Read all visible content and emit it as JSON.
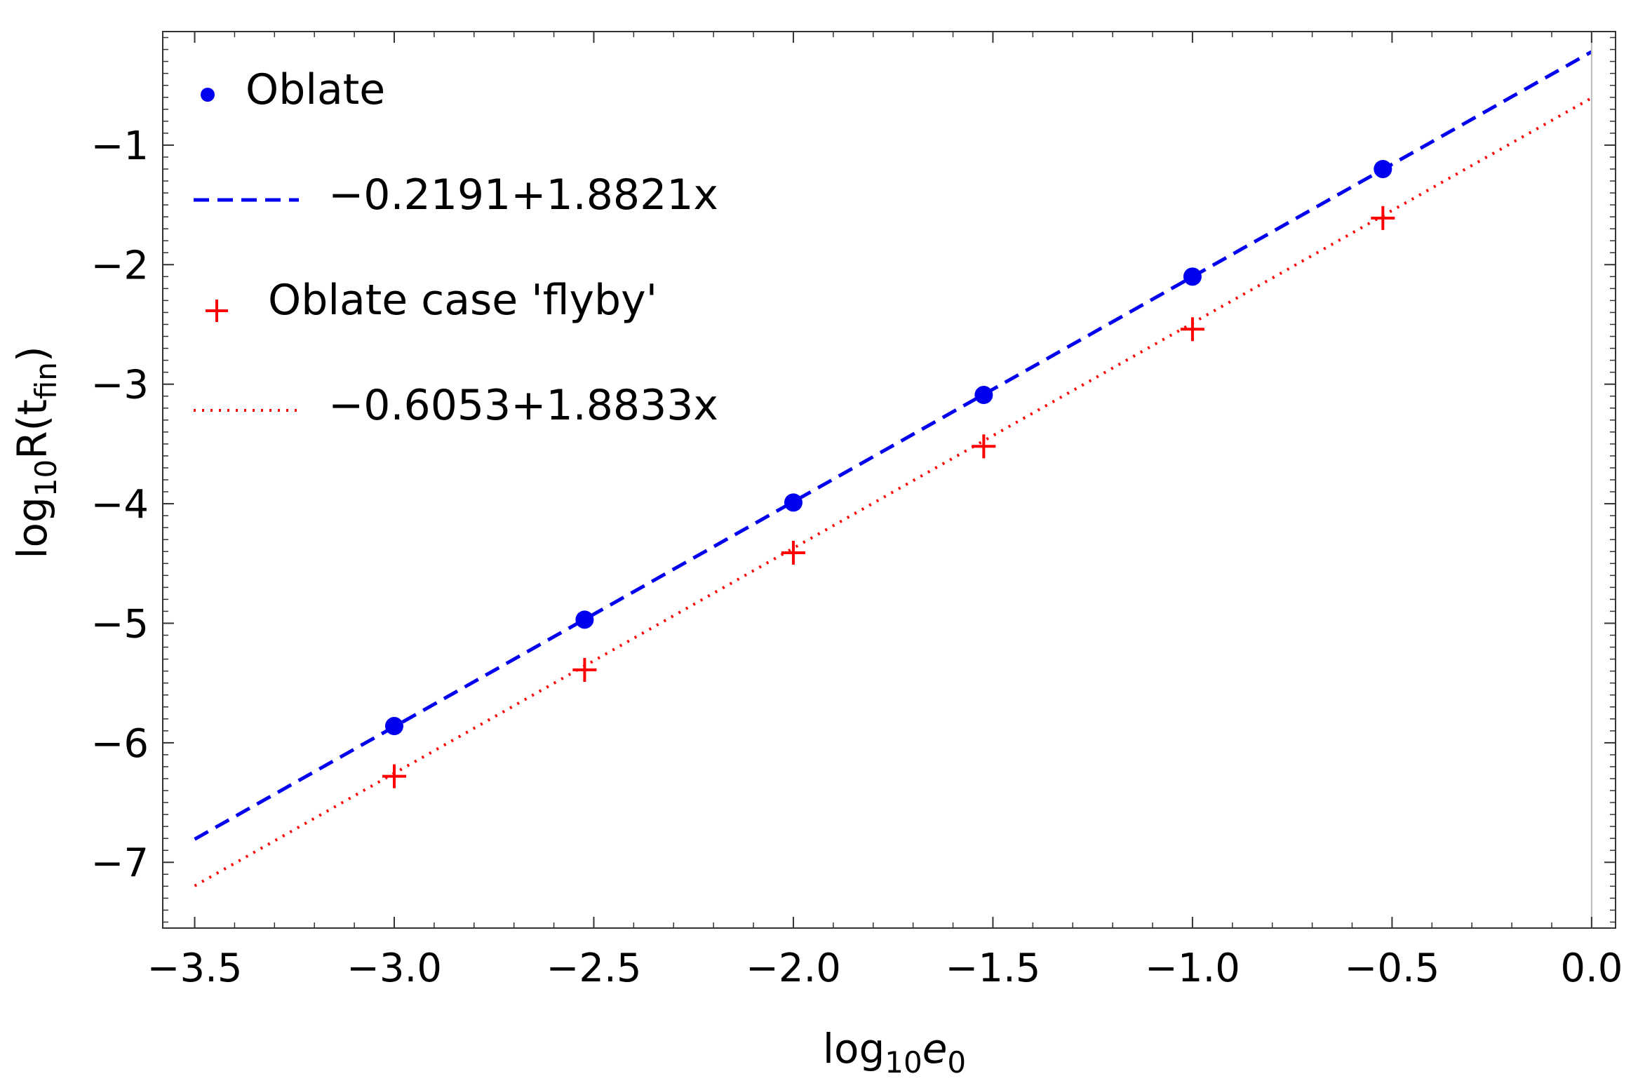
{
  "chart_data": {
    "type": "scatter",
    "title": "",
    "xlabel": {
      "base": "log",
      "sub": "10",
      "var": "e",
      "var_sub": "0"
    },
    "ylabel": {
      "base": "log",
      "sub": "10",
      "main": "R(t",
      "inner_sub": "fin",
      "close": ")"
    },
    "xlim": [
      -3.58,
      0.06
    ],
    "ylim": [
      -7.55,
      -0.05
    ],
    "xticks": [
      -3.5,
      -3.0,
      -2.5,
      -2.0,
      -1.5,
      -1.0,
      -0.5,
      0.0
    ],
    "xtick_labels": [
      "−3.5",
      "−3.0",
      "−2.5",
      "−2.0",
      "−1.5",
      "−1.0",
      "−0.5",
      "0.0"
    ],
    "yticks": [
      -7,
      -6,
      -5,
      -4,
      -3,
      -2,
      -1
    ],
    "ytick_labels": [
      "−7",
      "−6",
      "−5",
      "−4",
      "−3",
      "−2",
      "−1"
    ],
    "grid": false,
    "legend_position": "top-left",
    "series": [
      {
        "name": "Oblate",
        "kind": "points",
        "marker": "dot",
        "color": "#0000ee",
        "x": [
          -3.0,
          -2.523,
          -2.0,
          -1.523,
          -1.0,
          -0.523
        ],
        "y": [
          -5.86,
          -4.97,
          -3.99,
          -3.09,
          -2.1,
          -1.2
        ]
      },
      {
        "name": "−0.2191+1.8821x",
        "kind": "line",
        "style": "dashed",
        "color": "#0000ee",
        "intercept": -0.2191,
        "slope": 1.8821,
        "x_range": [
          -3.5,
          0.0
        ]
      },
      {
        "name": "Oblate case 'flyby'",
        "kind": "points",
        "marker": "plus",
        "color": "#ff0000",
        "x": [
          -3.0,
          -2.523,
          -2.0,
          -1.523,
          -1.0,
          -0.523
        ],
        "y": [
          -6.28,
          -5.39,
          -4.41,
          -3.52,
          -2.54,
          -1.61
        ]
      },
      {
        "name": "−0.6053+1.8833x",
        "kind": "line",
        "style": "dotted",
        "color": "#ff0000",
        "intercept": -0.6053,
        "slope": 1.8833,
        "x_range": [
          -3.5,
          0.0
        ]
      }
    ]
  }
}
